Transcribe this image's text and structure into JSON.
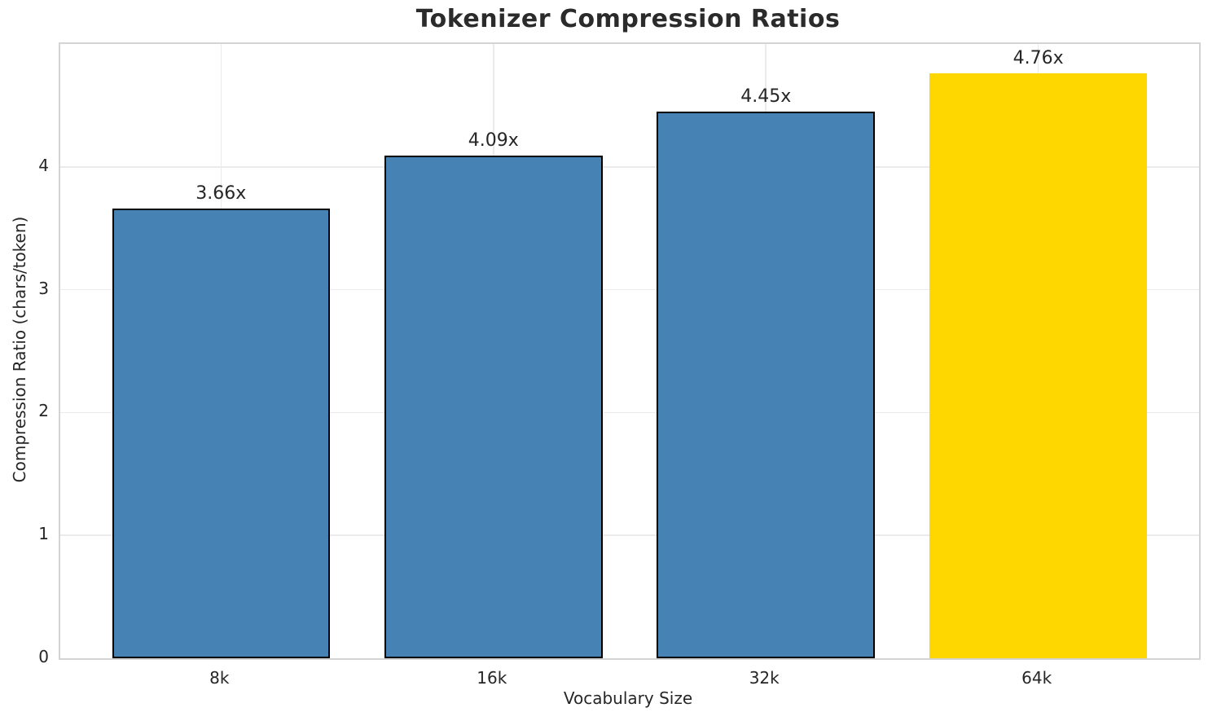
{
  "chart_data": {
    "type": "bar",
    "title": "Tokenizer Compression Ratios",
    "xlabel": "Vocabulary Size",
    "ylabel": "Compression Ratio (chars/token)",
    "categories": [
      "8k",
      "16k",
      "32k",
      "64k"
    ],
    "values": [
      3.66,
      4.09,
      4.45,
      4.76
    ],
    "bar_labels": [
      "3.66x",
      "4.09x",
      "4.45x",
      "4.76x"
    ],
    "bar_colors": [
      "#4682B4",
      "#4682B4",
      "#4682B4",
      "#FFD700"
    ],
    "bar_edge_colors": [
      "#000000",
      "#000000",
      "#000000",
      "#FFD700"
    ],
    "ylim": [
      0,
      5
    ],
    "yticks": [
      0,
      1,
      2,
      3,
      4
    ],
    "grid": "both",
    "legend": "none",
    "highlighted_category": "64k"
  },
  "style": {
    "bar_default_color": "#4682B4",
    "bar_highlight_color": "#FFD700",
    "bar_edge_color": "#000000",
    "grid_color": "#EBEBEB",
    "spine_color": "#D4D4D4",
    "text_color": "#262626",
    "background_color": "#FFFFFF"
  }
}
